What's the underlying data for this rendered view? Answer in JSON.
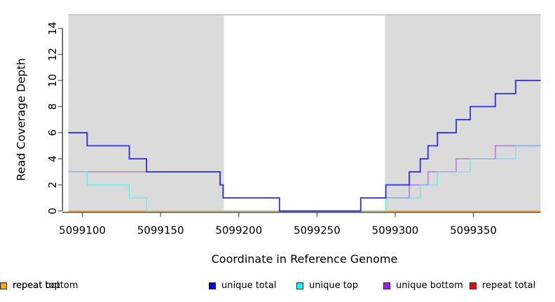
{
  "figure": {
    "y_axis_label": "Read Coverage Depth",
    "x_axis_label": "Coordinate in Reference Genome"
  },
  "chart_data": {
    "type": "line",
    "subtype": "step",
    "title": "",
    "xlabel": "Coordinate in Reference Genome",
    "ylabel": "Read Coverage Depth",
    "xlim": [
      5099091,
      5099393
    ],
    "ylim": [
      0,
      15
    ],
    "grid": false,
    "x_ticks": [
      5099100,
      5099150,
      5099200,
      5099250,
      5099300,
      5099350
    ],
    "y_ticks": [
      0,
      2,
      4,
      6,
      8,
      10,
      12,
      14
    ],
    "shade_color": "#dbdbdb",
    "shade_top_edge_color": "#ababab",
    "shaded_regions": [
      {
        "x1": 5099091,
        "x2": 5099190.5
      },
      {
        "x1": 5099293.5,
        "x2": 5099393
      }
    ],
    "series": [
      {
        "name": "unique total",
        "color": "#0000ee",
        "line_color": "#2e2ee0",
        "segments": [
          {
            "points": [
              [
                5099091,
                6
              ],
              [
                5099103,
                5
              ],
              [
                5099130,
                4
              ],
              [
                5099141,
                3
              ],
              [
                5099188,
                2
              ],
              [
                5099190,
                1
              ],
              [
                5099226,
                0
              ],
              [
                5099278,
                1
              ],
              [
                5099294,
                2
              ],
              [
                5099309,
                3
              ],
              [
                5099316,
                4
              ],
              [
                5099321,
                5
              ],
              [
                5099327,
                6
              ],
              [
                5099339,
                7
              ],
              [
                5099348,
                8
              ],
              [
                5099364,
                9
              ],
              [
                5099377,
                10
              ]
            ],
            "end": 5099393
          }
        ]
      },
      {
        "name": "unique top",
        "color": "#00ffff",
        "line_color": "#6fe8e8",
        "segments": [
          {
            "points": [
              [
                5099091,
                3
              ],
              [
                5099103,
                2
              ],
              [
                5099130,
                1
              ],
              [
                5099141,
                0
              ]
            ],
            "end": 5099141
          },
          {
            "points": [
              [
                5099294,
                0
              ],
              [
                5099294,
                1
              ],
              [
                5099316,
                2
              ],
              [
                5099327,
                3
              ],
              [
                5099348,
                4
              ],
              [
                5099377,
                5
              ]
            ],
            "end": 5099393
          }
        ]
      },
      {
        "name": "unique bottom",
        "color": "#a020f0",
        "line_color": "#ad76da",
        "segments": [
          {
            "points": [
              [
                5099091,
                3
              ],
              [
                5099188,
                2
              ],
              [
                5099190,
                1
              ],
              [
                5099226,
                0
              ],
              [
                5099278,
                1
              ],
              [
                5099309,
                2
              ],
              [
                5099321,
                3
              ],
              [
                5099339,
                4
              ],
              [
                5099364,
                5
              ]
            ],
            "end": 5099393
          }
        ]
      },
      {
        "name": "repeat total",
        "color": "#ff0000",
        "line_color": "#ff0000",
        "segments": [
          {
            "points": [
              [
                5099091,
                0
              ]
            ],
            "end": 5099393
          }
        ]
      },
      {
        "name": "repeat top",
        "color": "#ffff00",
        "line_color": "#ffff00",
        "segments": [
          {
            "points": [
              [
                5099091,
                0
              ]
            ],
            "end": 5099393
          }
        ]
      },
      {
        "name": "repeat bottom",
        "color": "#ffa500",
        "line_color": "#ffa020",
        "segments": [
          {
            "points": [
              [
                5099091,
                0
              ]
            ],
            "end": 5099393
          }
        ]
      }
    ],
    "overlap_blends": {
      "color": "#8fb0e6",
      "segments": [
        {
          "y": 3,
          "x1": 5099091,
          "x2": 5099103
        },
        {
          "y": 1,
          "x1": 5099294,
          "x2": 5099309
        },
        {
          "y": 2,
          "x1": 5099316,
          "x2": 5099321
        },
        {
          "y": 3,
          "x1": 5099327,
          "x2": 5099339
        },
        {
          "y": 4,
          "x1": 5099348,
          "x2": 5099364
        },
        {
          "y": 5,
          "x1": 5099377,
          "x2": 5099393
        }
      ],
      "zero_line_blend": {
        "color": "#9fd69f",
        "y": 0,
        "x1": 5099141,
        "x2": 5099294
      }
    }
  },
  "legend": {
    "items": [
      {
        "label": "unique total",
        "color": "#0000ee"
      },
      {
        "label": "unique top",
        "color": "#00ffff"
      },
      {
        "label": "unique bottom",
        "color": "#a020f0"
      },
      {
        "label": "repeat total",
        "color": "#ff0000"
      },
      {
        "label": "repeat top",
        "color": "#ffff00"
      },
      {
        "label": "repeat bottom",
        "color": "#ffa500"
      }
    ]
  }
}
